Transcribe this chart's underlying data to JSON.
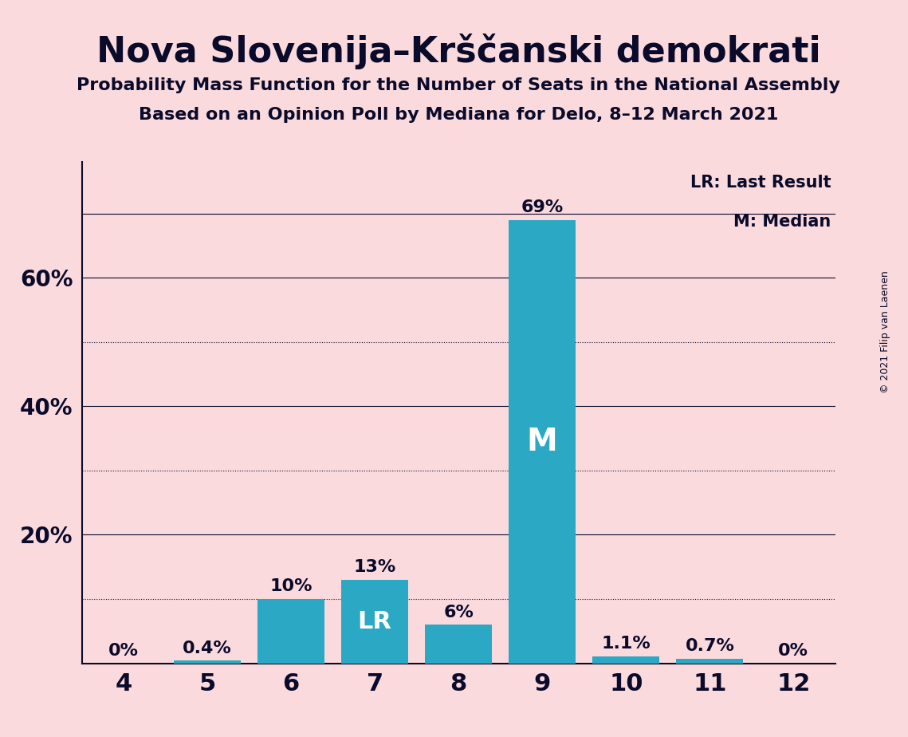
{
  "title": "Nova Slovenija–Krščanski demokrati",
  "subtitle1": "Probability Mass Function for the Number of Seats in the National Assembly",
  "subtitle2": "Based on an Opinion Poll by Mediana for Delo, 8–12 March 2021",
  "copyright": "© 2021 Filip van Laenen",
  "categories": [
    4,
    5,
    6,
    7,
    8,
    9,
    10,
    11,
    12
  ],
  "values": [
    0.0,
    0.4,
    10.0,
    13.0,
    6.0,
    69.0,
    1.1,
    0.7,
    0.0
  ],
  "labels": [
    "0%",
    "0.4%",
    "10%",
    "13%",
    "6%",
    "69%",
    "1.1%",
    "0.7%",
    "0%"
  ],
  "bar_color": "#2aa8c4",
  "background_color": "#fadadd",
  "text_color": "#0a0a2a",
  "lr_bar": 7,
  "median_bar": 9,
  "legend_lr": "LR: Last Result",
  "legend_m": "M: Median",
  "ylim": [
    0,
    78
  ],
  "dotted_lines": [
    10,
    30,
    50
  ],
  "solid_lines": [
    20,
    40,
    60,
    70
  ],
  "ytick_positions": [
    20,
    40,
    60
  ],
  "ytick_labels": [
    "20%",
    "40%",
    "60%"
  ]
}
